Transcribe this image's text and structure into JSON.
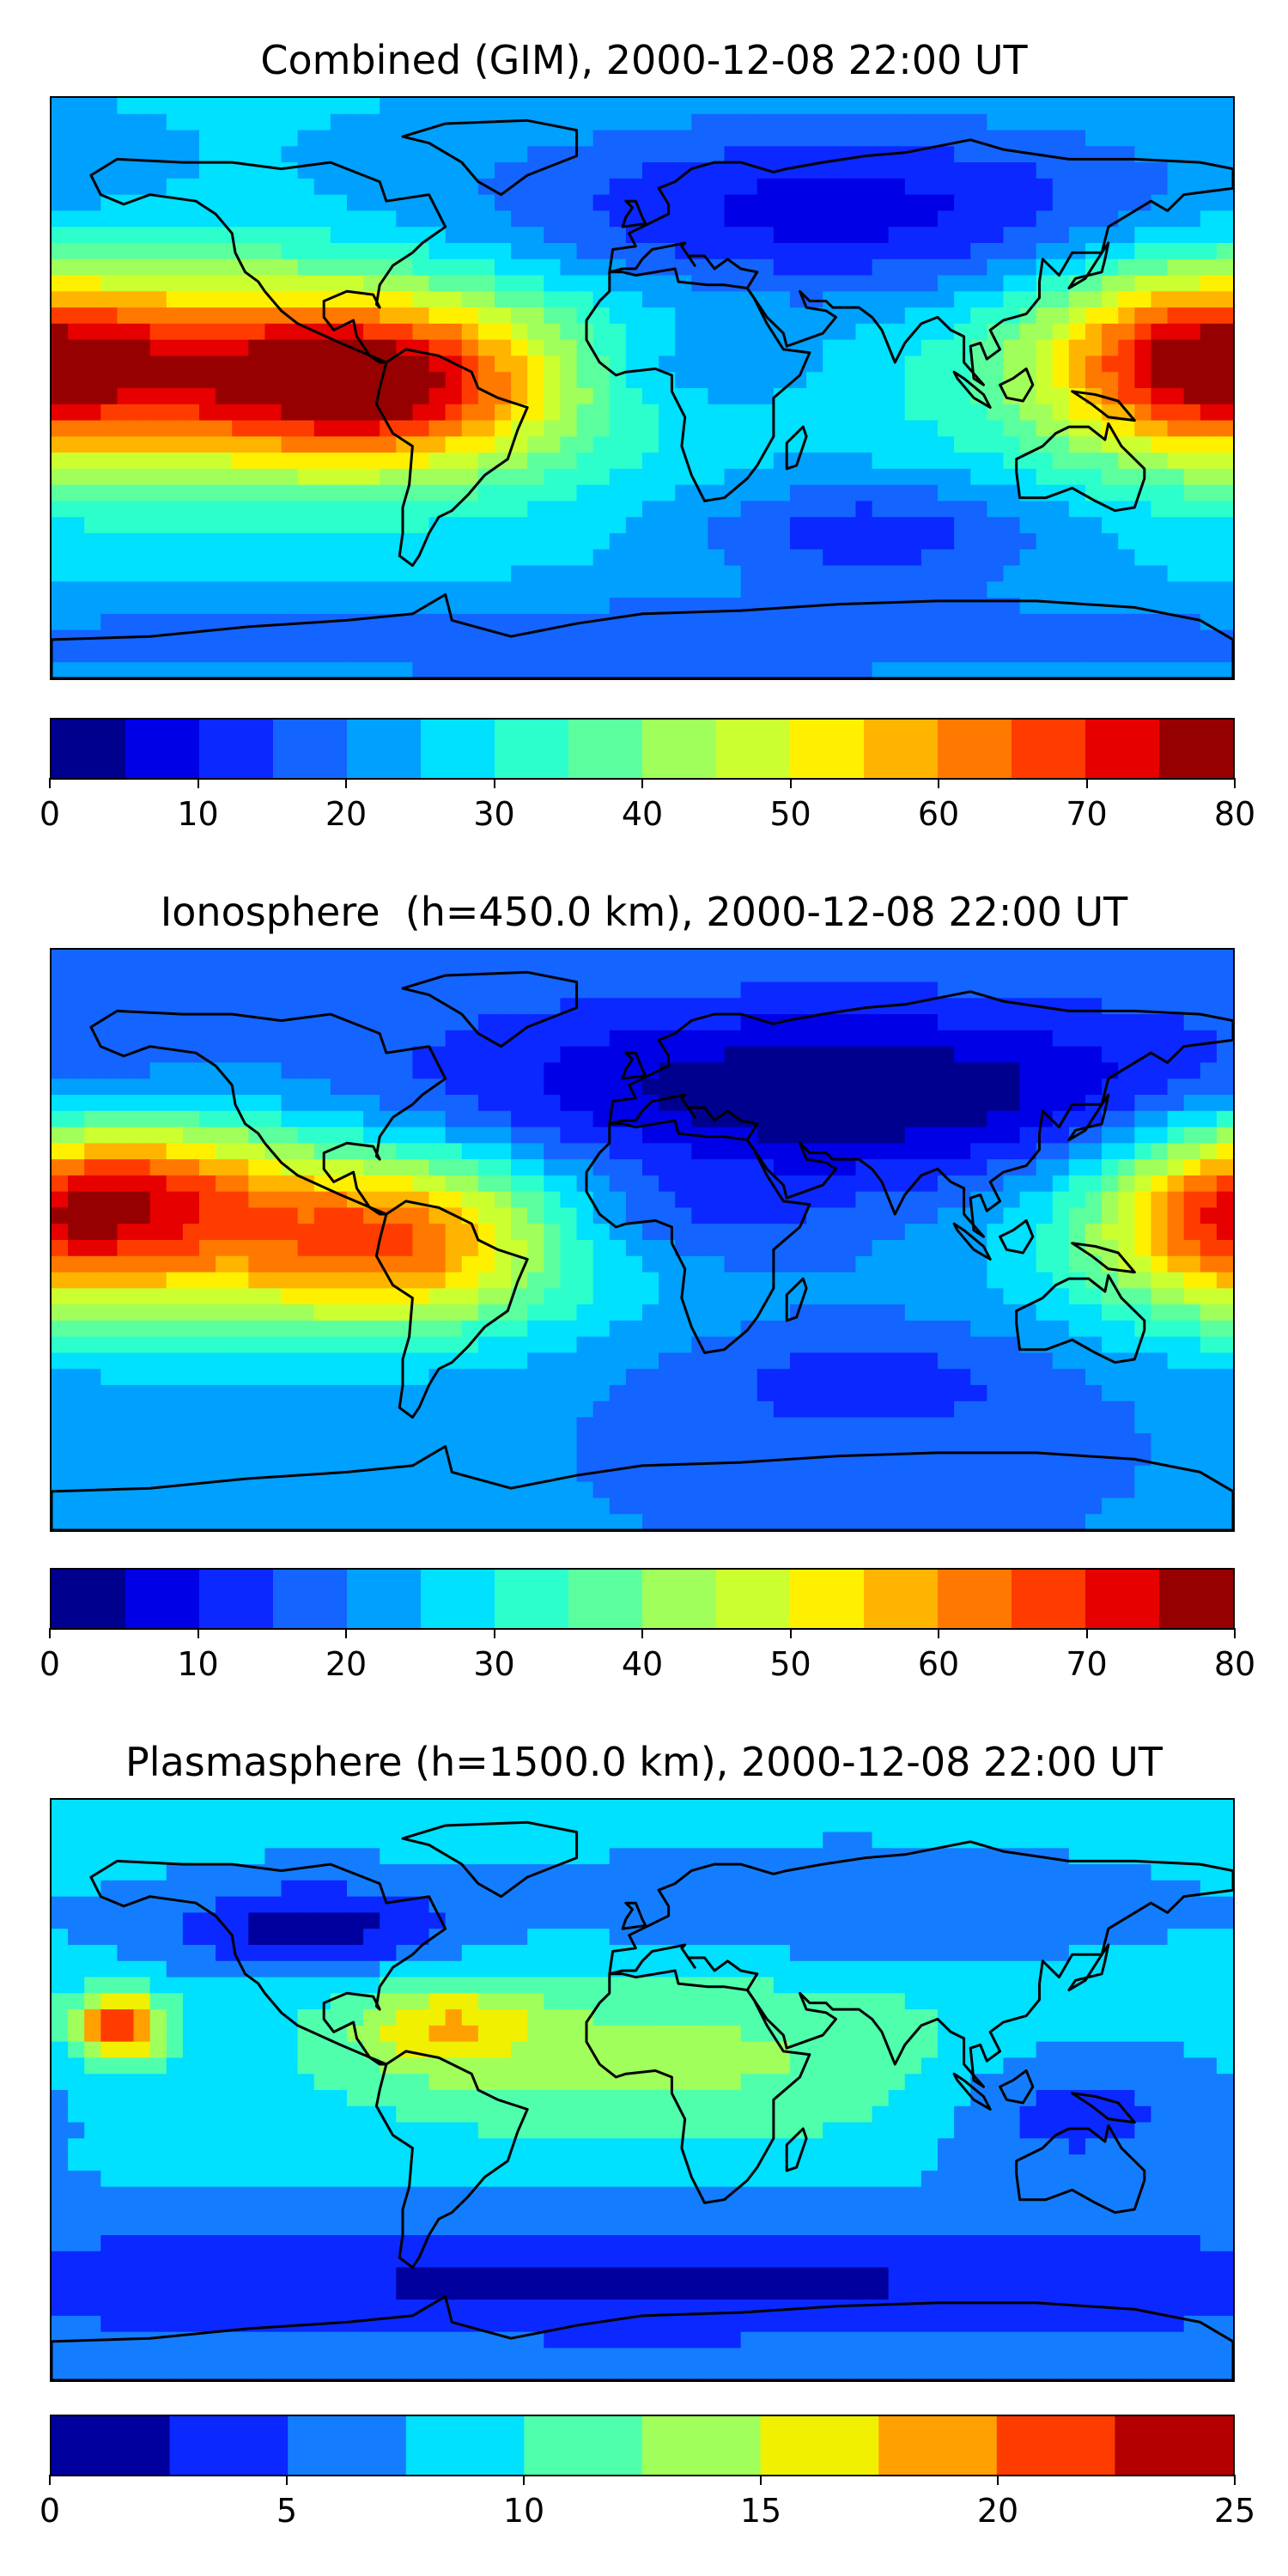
{
  "panels": [
    {
      "title": "Combined (GIM), 2000-12-08 22:00 UT",
      "colorbar": {
        "min": 0,
        "max": 80,
        "boundaries": [
          0,
          5,
          10,
          15,
          20,
          25,
          30,
          35,
          40,
          45,
          50,
          55,
          60,
          65,
          70,
          75,
          80
        ],
        "tick_labels": [
          "0",
          "10",
          "20",
          "30",
          "40",
          "50",
          "60",
          "70",
          "80"
        ],
        "colors": [
          "#00008f",
          "#0000e6",
          "#0a28ff",
          "#1464ff",
          "#00a0ff",
          "#00e0ff",
          "#2cffcc",
          "#5cff9e",
          "#a0ff5a",
          "#ccff30",
          "#fff000",
          "#ffb400",
          "#ff7800",
          "#ff3c00",
          "#e60000",
          "#960000"
        ]
      },
      "field": {
        "base": 26,
        "blobs": [
          {
            "lon": -130,
            "lat": 5,
            "sx": 70,
            "sy": 22,
            "amp": 42
          },
          {
            "lon": -75,
            "lat": 0,
            "sx": 35,
            "sy": 18,
            "amp": 26
          },
          {
            "lon": 165,
            "lat": 10,
            "sx": 30,
            "sy": 20,
            "amp": 28
          },
          {
            "lon": 60,
            "lat": 55,
            "sx": 80,
            "sy": 20,
            "amp": -18
          },
          {
            "lon": 70,
            "lat": -45,
            "sx": 40,
            "sy": 12,
            "amp": -14
          },
          {
            "lon": 10,
            "lat": 5,
            "sx": 25,
            "sy": 10,
            "amp": -8
          },
          {
            "lon": 0,
            "lat": -78,
            "sx": 200,
            "sy": 10,
            "amp": -10
          }
        ]
      }
    },
    {
      "title": "Ionosphere  (h=450.0 km), 2000-12-08 22:00 UT",
      "colorbar": {
        "min": 0,
        "max": 80,
        "boundaries": [
          0,
          5,
          10,
          15,
          20,
          25,
          30,
          35,
          40,
          45,
          50,
          55,
          60,
          65,
          70,
          75,
          80
        ],
        "tick_labels": [
          "0",
          "10",
          "20",
          "30",
          "40",
          "50",
          "60",
          "70",
          "80"
        ],
        "colors": [
          "#00008f",
          "#0000e6",
          "#0a28ff",
          "#1464ff",
          "#00a0ff",
          "#00e0ff",
          "#2cffcc",
          "#5cff9e",
          "#a0ff5a",
          "#ccff30",
          "#fff000",
          "#ffb400",
          "#ff7800",
          "#ff3c00",
          "#e60000",
          "#960000"
        ]
      },
      "field": {
        "base": 20,
        "blobs": [
          {
            "lon": -120,
            "lat": 0,
            "sx": 70,
            "sy": 22,
            "amp": 34
          },
          {
            "lon": -70,
            "lat": 0,
            "sx": 30,
            "sy": 18,
            "amp": 20
          },
          {
            "lon": -150,
            "lat": 20,
            "sx": 30,
            "sy": 15,
            "amp": 20
          },
          {
            "lon": 175,
            "lat": 8,
            "sx": 28,
            "sy": 20,
            "amp": 26
          },
          {
            "lon": 60,
            "lat": 45,
            "sx": 90,
            "sy": 20,
            "amp": -20
          },
          {
            "lon": 10,
            "lat": 5,
            "sx": 30,
            "sy": 10,
            "amp": -8
          },
          {
            "lon": 70,
            "lat": -45,
            "sx": 40,
            "sy": 12,
            "amp": -8
          }
        ]
      }
    },
    {
      "title": "Plasmasphere (h=1500.0 km), 2000-12-08 22:00 UT",
      "colorbar": {
        "min": 0,
        "max": 25,
        "boundaries": [
          0,
          2.5,
          5,
          7.5,
          10,
          12.5,
          15,
          17.5,
          20,
          22.5,
          25
        ],
        "tick_labels": [
          "0",
          "5",
          "10",
          "15",
          "20",
          "25"
        ],
        "colors": [
          "#00009e",
          "#0a28ff",
          "#147dff",
          "#00e0ff",
          "#50ffac",
          "#a0ff5a",
          "#f0f000",
          "#ffa000",
          "#ff3c00",
          "#b40000"
        ]
      },
      "field": {
        "base": 8,
        "blobs": [
          {
            "lon": -160,
            "lat": 20,
            "sx": 10,
            "sy": 8,
            "amp": 14
          },
          {
            "lon": -60,
            "lat": 20,
            "sx": 20,
            "sy": 10,
            "amp": 7
          },
          {
            "lon": 10,
            "lat": 10,
            "sx": 80,
            "sy": 20,
            "amp": 5
          },
          {
            "lon": -100,
            "lat": 50,
            "sx": 30,
            "sy": 10,
            "amp": -7
          },
          {
            "lon": 130,
            "lat": -5,
            "sx": 30,
            "sy": 15,
            "amp": -5
          },
          {
            "lon": 0,
            "lat": -60,
            "sx": 200,
            "sy": 15,
            "amp": -6
          },
          {
            "lon": 60,
            "lat": 55,
            "sx": 60,
            "sy": 12,
            "amp": -3
          }
        ]
      }
    }
  ]
}
